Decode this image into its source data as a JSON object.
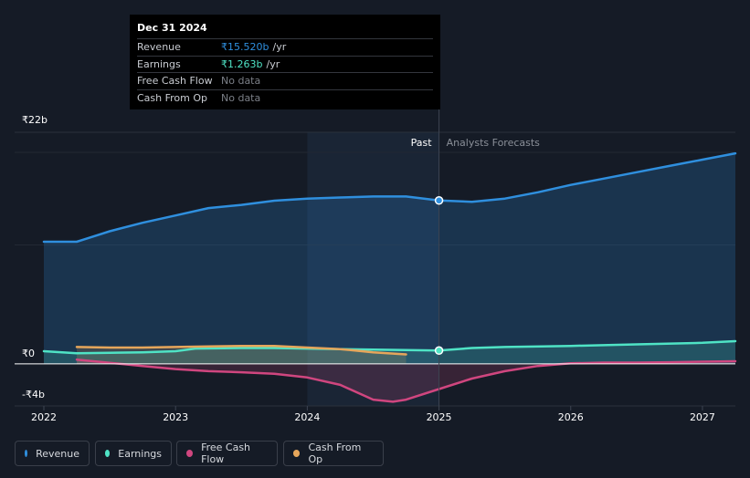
{
  "tooltip": {
    "date": "Dec 31 2024",
    "rows": [
      {
        "label": "Revenue",
        "value": "₹15.520b",
        "unit": "/yr",
        "color": "#2f8fde"
      },
      {
        "label": "Earnings",
        "value": "₹1.263b",
        "unit": "/yr",
        "color": "#4fe3c5"
      },
      {
        "label": "Free Cash Flow",
        "value": "No data",
        "unit": "",
        "color": "#7b7f87"
      },
      {
        "label": "Cash From Op",
        "value": "No data",
        "unit": "",
        "color": "#7b7f87"
      }
    ]
  },
  "legend": [
    {
      "label": "Revenue",
      "color": "#2f8fde"
    },
    {
      "label": "Earnings",
      "color": "#4fe3c5"
    },
    {
      "label": "Free Cash Flow",
      "color": "#d0467f"
    },
    {
      "label": "Cash From Op",
      "color": "#e6a65b"
    }
  ],
  "chart_data": {
    "type": "line",
    "title": "",
    "xlabel": "",
    "ylabel": "",
    "ylim": [
      -4,
      22
    ],
    "xlim": [
      2022,
      2027.25
    ],
    "y_tick_labels": [
      {
        "value": 22,
        "label": "₹22b"
      },
      {
        "value": 0,
        "label": "₹0"
      },
      {
        "value": -4,
        "label": "-₹4b"
      }
    ],
    "x_tick_labels": [
      "2022",
      "2023",
      "2024",
      "2025",
      "2026",
      "2027"
    ],
    "divider_x": 2025.0,
    "past_label": "Past",
    "forecast_label": "Analysts Forecasts",
    "highlight_from": 2024.0,
    "series": [
      {
        "name": "Revenue",
        "color": "#2f8fde",
        "fill": true,
        "x": [
          2022.0,
          2022.25,
          2022.3,
          2022.5,
          2022.75,
          2023.0,
          2023.25,
          2023.5,
          2023.75,
          2024.0,
          2024.25,
          2024.5,
          2024.75,
          2025.0,
          2025.25,
          2025.5,
          2025.75,
          2026.0,
          2026.25,
          2026.5,
          2026.75,
          2027.0,
          2027.25
        ],
        "values": [
          11.6,
          11.6,
          11.8,
          12.6,
          13.4,
          14.1,
          14.8,
          15.1,
          15.5,
          15.7,
          15.8,
          15.9,
          15.9,
          15.52,
          15.4,
          15.7,
          16.3,
          17.0,
          17.6,
          18.2,
          18.8,
          19.4,
          20.0
        ]
      },
      {
        "name": "Earnings",
        "color": "#4fe3c5",
        "fill": true,
        "x": [
          2022.0,
          2022.25,
          2022.5,
          2022.75,
          2023.0,
          2023.15,
          2023.5,
          2023.75,
          2024.0,
          2024.25,
          2024.5,
          2024.75,
          2025.0,
          2025.25,
          2025.5,
          2026.0,
          2026.5,
          2027.0,
          2027.25
        ],
        "values": [
          1.2,
          1.0,
          1.05,
          1.1,
          1.2,
          1.45,
          1.5,
          1.5,
          1.45,
          1.4,
          1.35,
          1.3,
          1.263,
          1.5,
          1.6,
          1.7,
          1.85,
          2.0,
          2.15
        ]
      },
      {
        "name": "Free Cash Flow",
        "color": "#d0467f",
        "fill": true,
        "x": [
          2022.25,
          2022.5,
          2022.75,
          2023.0,
          2023.25,
          2023.5,
          2023.75,
          2024.0,
          2024.25,
          2024.5,
          2024.65,
          2024.75,
          2025.0,
          2025.25,
          2025.5,
          2025.75,
          2026.0,
          2026.25,
          2026.5,
          2026.75,
          2027.0,
          2027.25
        ],
        "values": [
          0.4,
          0.1,
          -0.2,
          -0.5,
          -0.7,
          -0.8,
          -0.95,
          -1.3,
          -2.0,
          -3.4,
          -3.6,
          -3.4,
          -2.4,
          -1.4,
          -0.7,
          -0.2,
          0.05,
          0.12,
          0.12,
          0.15,
          0.2,
          0.25
        ]
      },
      {
        "name": "Cash From Op",
        "color": "#e6a65b",
        "fill": true,
        "x": [
          2022.25,
          2022.5,
          2022.75,
          2023.0,
          2023.25,
          2023.5,
          2023.75,
          2024.0,
          2024.25,
          2024.5,
          2024.75
        ],
        "values": [
          1.6,
          1.55,
          1.55,
          1.6,
          1.65,
          1.7,
          1.7,
          1.55,
          1.4,
          1.1,
          0.9
        ]
      }
    ],
    "markers": [
      {
        "series": "Revenue",
        "x": 2025.0,
        "y": 15.52
      },
      {
        "series": "Earnings",
        "x": 2025.0,
        "y": 1.263
      }
    ]
  }
}
